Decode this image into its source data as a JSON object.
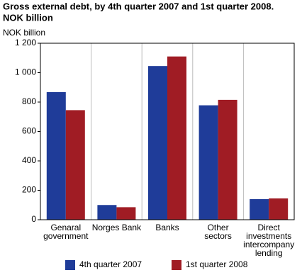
{
  "chart_data": {
    "type": "bar",
    "title": [
      "Gross external debt, by 4th quarter 2007 and 1st quarter 2008.",
      "NOK billion"
    ],
    "y_label": "NOK billion",
    "categories": [
      [
        "Genaral",
        "government"
      ],
      [
        "Norges Bank"
      ],
      [
        "Banks"
      ],
      [
        "Other",
        "sectors"
      ],
      [
        "Direct",
        "investments",
        "intercompany",
        "lending"
      ]
    ],
    "series": [
      {
        "name": "4th quarter 2007",
        "color": "#1f3c99",
        "values": [
          868,
          100,
          1045,
          778,
          140
        ]
      },
      {
        "name": "1st quarter 2008",
        "color": "#a01c24",
        "values": [
          745,
          85,
          1110,
          815,
          145
        ]
      }
    ],
    "ylim": [
      0,
      1200
    ],
    "yticks": [
      0,
      200,
      400,
      600,
      800,
      {
        "value": 1000,
        "label": "1 000"
      },
      {
        "value": 1200,
        "label": "1 200"
      }
    ],
    "legend": "bottom"
  }
}
